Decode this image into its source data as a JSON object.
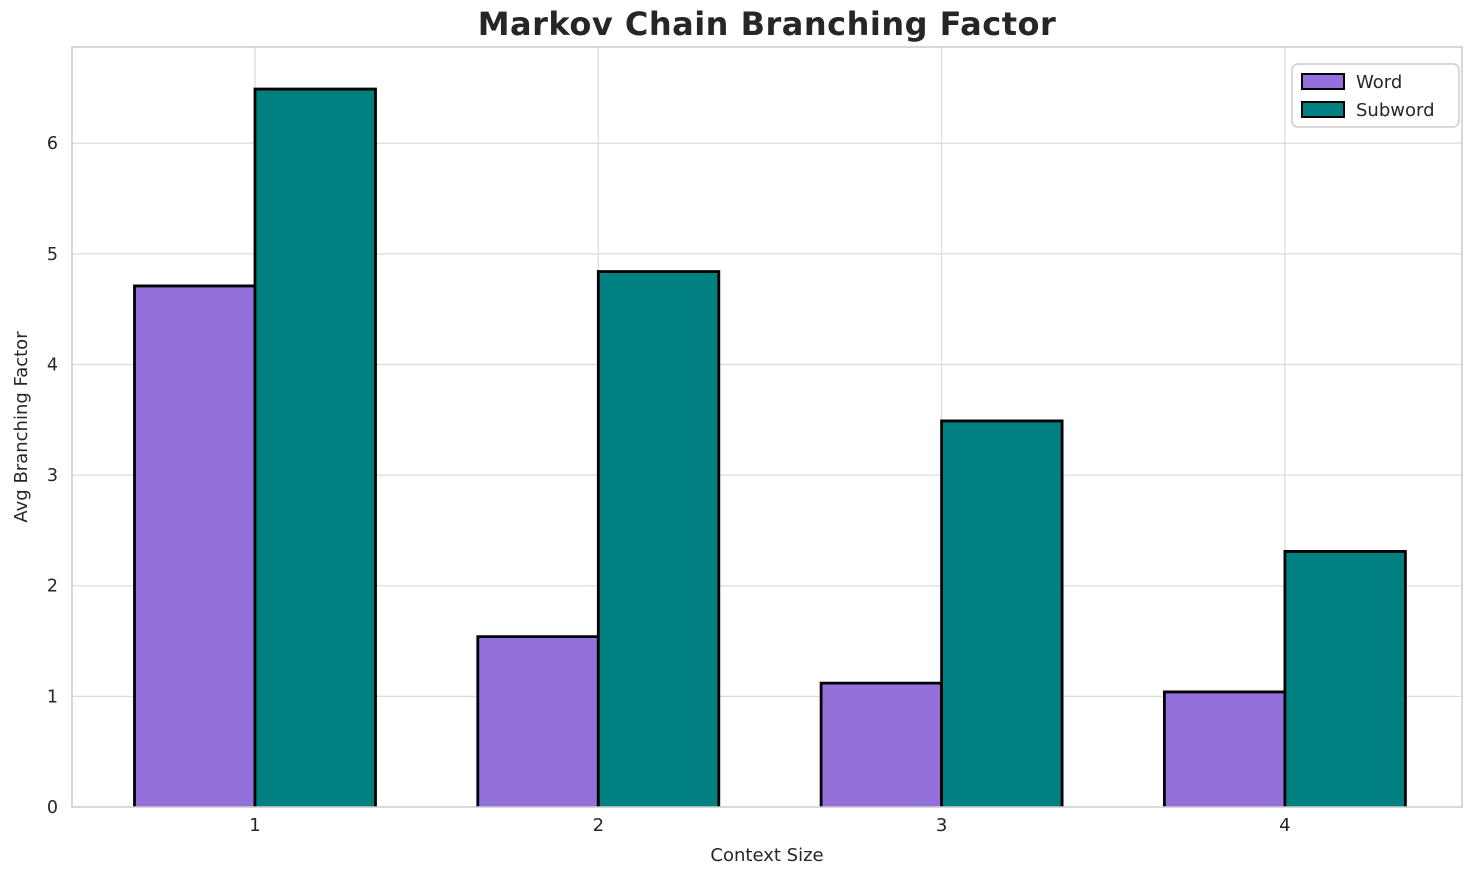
{
  "chart_data": {
    "type": "bar",
    "title": "Markov Chain Branching Factor",
    "xlabel": "Context Size",
    "ylabel": "Avg Branching Factor",
    "categories": [
      "1",
      "2",
      "3",
      "4"
    ],
    "series": [
      {
        "name": "Word",
        "color": "#9370DB",
        "values": [
          4.71,
          1.54,
          1.12,
          1.04
        ]
      },
      {
        "name": "Subword",
        "color": "#008080",
        "values": [
          6.49,
          4.84,
          3.49,
          2.31
        ]
      }
    ],
    "ylim": [
      0,
      6.87
    ],
    "yticks": [
      0,
      1,
      2,
      3,
      4,
      5,
      6
    ],
    "grid": true,
    "legend": {
      "position": "upper right",
      "entries": [
        "Word",
        "Subword"
      ]
    },
    "bar_edge_color": "#000000",
    "colors": {
      "grid": "#dcdcdc",
      "spine": "#cccccc",
      "text": "#262626",
      "background": "#ffffff"
    }
  }
}
